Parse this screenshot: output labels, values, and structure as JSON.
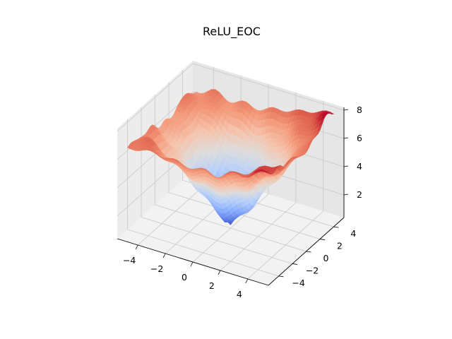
{
  "chart_data": {
    "type": "surface",
    "title": "ReLU_EOC",
    "colormap": "coolwarm",
    "x_ticks": [
      "−4",
      "−2",
      "0",
      "2",
      "4"
    ],
    "x_tick_values": [
      -4,
      -2,
      0,
      2,
      4
    ],
    "y_ticks": [
      "−4",
      "−2",
      "0",
      "2",
      "4"
    ],
    "y_tick_values": [
      -4,
      -2,
      0,
      2,
      4
    ],
    "z_ticks": [
      "2",
      "4",
      "6",
      "8"
    ],
    "z_tick_values": [
      2,
      4,
      6,
      8
    ],
    "xlim": [
      -5.5,
      5.5
    ],
    "ylim": [
      -5.5,
      5.5
    ],
    "zlim": [
      0.4,
      8.2
    ],
    "grid": true,
    "surface": {
      "description_of_shape": "bowl / cone-like loss landscape, minimum near (0,0)",
      "minimum": 0.5,
      "corner_values": {
        "x_min_y_min": 6.6,
        "x_min_y_max": 6.0,
        "x_max_y_min": 7.8,
        "x_max_y_max": 8.0
      }
    }
  }
}
